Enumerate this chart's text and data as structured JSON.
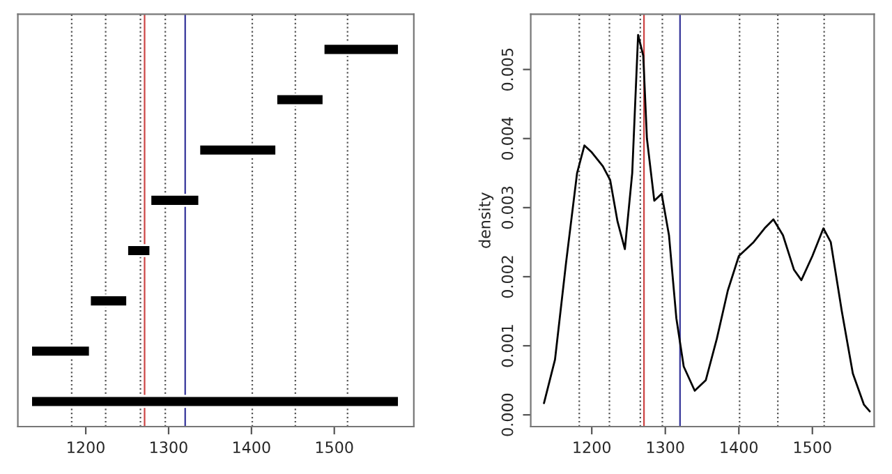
{
  "chart_data": [
    {
      "type": "bar",
      "orientation": "horizontal",
      "categories": [
        null,
        null,
        null,
        null,
        null,
        null,
        null,
        null
      ],
      "values": [
        91,
        57,
        93,
        59,
        28,
        45,
        71,
        444
      ],
      "base": [
        1487,
        1430,
        1337,
        1278,
        1250,
        1205,
        1134,
        1134
      ],
      "color": "#000000",
      "xlim": [
        1118,
        1596
      ],
      "xticks": [
        1200,
        1300,
        1400,
        1500
      ],
      "tick_labels": "x",
      "grid": false,
      "ref_lines": [
        {
          "axis": "x",
          "value": 1183,
          "color": "#555555",
          "line_style": "dotted"
        },
        {
          "axis": "x",
          "value": 1224,
          "color": "#555555",
          "line_style": "dotted"
        },
        {
          "axis": "x",
          "value": 1266,
          "color": "#555555",
          "line_style": "dotted"
        },
        {
          "axis": "x",
          "value": 1296,
          "color": "#555555",
          "line_style": "dotted"
        },
        {
          "axis": "x",
          "value": 1401,
          "color": "#555555",
          "line_style": "dotted"
        },
        {
          "axis": "x",
          "value": 1453,
          "color": "#555555",
          "line_style": "dotted"
        },
        {
          "axis": "x",
          "value": 1516,
          "color": "#555555",
          "line_style": "dotted"
        },
        {
          "axis": "x",
          "value": 1271,
          "color": "#cc4444",
          "line_style": "solid"
        },
        {
          "axis": "x",
          "value": 1320,
          "color": "#333399",
          "line_style": "solid"
        }
      ]
    },
    {
      "type": "line",
      "ylabel": "density",
      "xlim": [
        1117,
        1584
      ],
      "ylim": [
        -0.00017,
        0.0058
      ],
      "xticks": [
        1200,
        1300,
        1400,
        1500
      ],
      "yticks": [
        {
          "value": 0,
          "label": "0.000"
        },
        {
          "value": 0.001,
          "label": "0.001"
        },
        {
          "value": 0.002,
          "label": "0.002"
        },
        {
          "value": 0.003,
          "label": "0.003"
        },
        {
          "value": 0.004,
          "label": "0.004"
        },
        {
          "value": 0.005,
          "label": "0.005"
        }
      ],
      "grid": false,
      "line_style": "solid",
      "marker": "none",
      "series": [
        {
          "color": "#000000",
          "x": [
            1135,
            1150,
            1165,
            1180,
            1190,
            1200,
            1215,
            1225,
            1235,
            1245,
            1255,
            1263,
            1270,
            1275,
            1285,
            1295,
            1305,
            1315,
            1325,
            1340,
            1355,
            1370,
            1385,
            1400,
            1420,
            1435,
            1447,
            1460,
            1475,
            1485,
            1500,
            1515,
            1525,
            1540,
            1555,
            1570,
            1578
          ],
          "values": [
            0.00017,
            0.0008,
            0.0022,
            0.0035,
            0.0039,
            0.0038,
            0.0036,
            0.0034,
            0.0028,
            0.0024,
            0.0035,
            0.0055,
            0.0052,
            0.004,
            0.0031,
            0.0032,
            0.0026,
            0.0014,
            0.0007,
            0.00035,
            0.0005,
            0.0011,
            0.0018,
            0.0023,
            0.0025,
            0.0027,
            0.00283,
            0.0026,
            0.0021,
            0.00195,
            0.0023,
            0.0027,
            0.0025,
            0.0015,
            0.0006,
            0.00015,
            5e-05
          ]
        }
      ],
      "ref_lines": [
        {
          "axis": "x",
          "value": 1183,
          "color": "#555555",
          "line_style": "dotted"
        },
        {
          "axis": "x",
          "value": 1224,
          "color": "#555555",
          "line_style": "dotted"
        },
        {
          "axis": "x",
          "value": 1266,
          "color": "#555555",
          "line_style": "dotted"
        },
        {
          "axis": "x",
          "value": 1296,
          "color": "#555555",
          "line_style": "dotted"
        },
        {
          "axis": "x",
          "value": 1401,
          "color": "#555555",
          "line_style": "dotted"
        },
        {
          "axis": "x",
          "value": 1453,
          "color": "#555555",
          "line_style": "dotted"
        },
        {
          "axis": "x",
          "value": 1516,
          "color": "#555555",
          "line_style": "dotted"
        },
        {
          "axis": "x",
          "value": 1271,
          "color": "#cc4444",
          "line_style": "solid"
        },
        {
          "axis": "x",
          "value": 1320,
          "color": "#333399",
          "line_style": "solid"
        }
      ]
    }
  ]
}
